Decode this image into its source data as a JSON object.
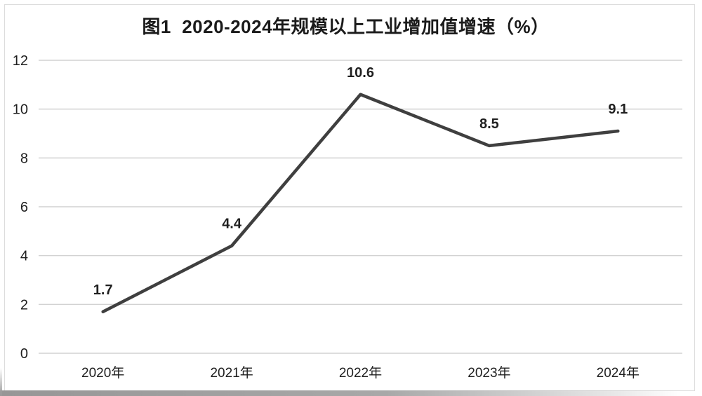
{
  "chart_data": {
    "type": "line",
    "title": "图1  2020-2024年规模以上工业增加值增速（%）",
    "categories": [
      "2020年",
      "2021年",
      "2022年",
      "2023年",
      "2024年"
    ],
    "values": [
      1.7,
      4.4,
      10.6,
      8.5,
      9.1
    ],
    "data_labels": [
      "1.7",
      "4.4",
      "10.6",
      "8.5",
      "9.1"
    ],
    "xlabel": "",
    "ylabel": "",
    "ylim": [
      0,
      12
    ],
    "yticks": [
      0,
      2,
      4,
      6,
      8,
      10,
      12
    ],
    "grid": true,
    "legend": "none",
    "colors": {
      "line": "#3f3f3f",
      "grid": "#d2d2d2",
      "text": "#1f1f1f",
      "frame": "#dcdcdc",
      "background": "#ffffff"
    }
  }
}
